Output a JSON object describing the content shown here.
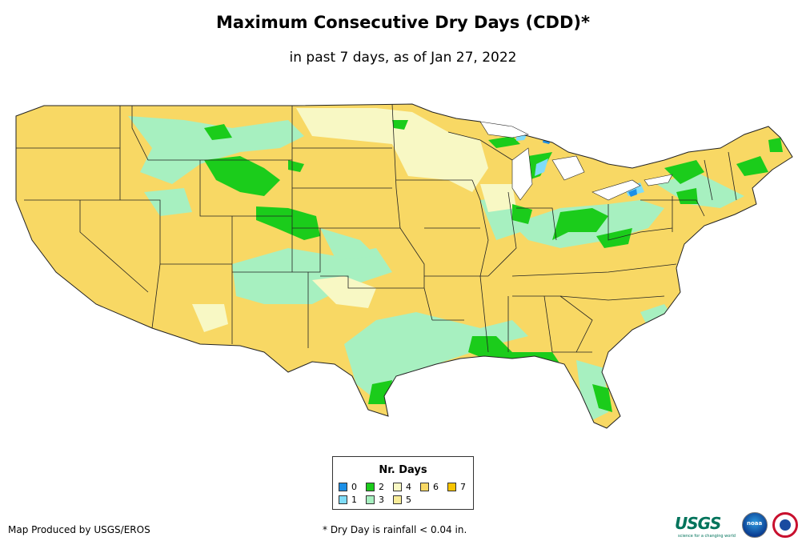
{
  "title": "Maximum Consecutive Dry Days (CDD)*",
  "subtitle": "in past 7 days, as of Jan 27, 2022",
  "legend": {
    "title": "Nr. Days",
    "items": [
      {
        "label": "0",
        "color": "#1c8fe6"
      },
      {
        "label": "1",
        "color": "#7fdcf8"
      },
      {
        "label": "2",
        "color": "#1bcc1b"
      },
      {
        "label": "3",
        "color": "#a7f0c0"
      },
      {
        "label": "4",
        "color": "#f8f8c4"
      },
      {
        "label": "5",
        "color": "#f8ec98"
      },
      {
        "label": "6",
        "color": "#f8d864"
      },
      {
        "label": "7",
        "color": "#f8c400"
      }
    ]
  },
  "footer": {
    "credit": "Map Produced by USGS/EROS",
    "note": "* Dry Day is rainfall < 0.04 in."
  },
  "logos": {
    "usgs": "USGS",
    "usgs_tagline": "science for a changing world",
    "noaa": "noaa",
    "nws_icon": "nws-logo-icon"
  }
}
